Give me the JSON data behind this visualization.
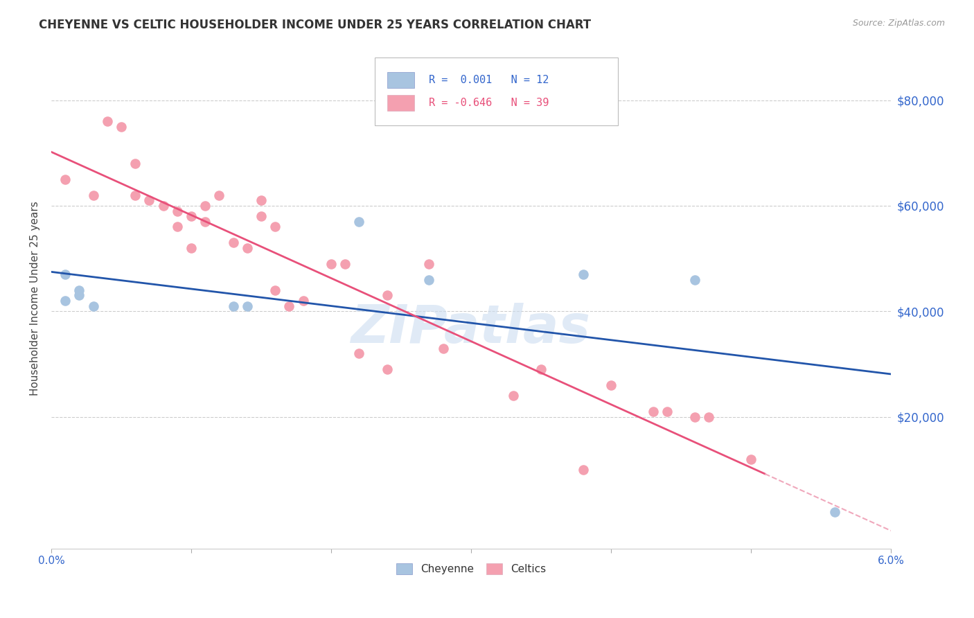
{
  "title": "CHEYENNE VS CELTIC HOUSEHOLDER INCOME UNDER 25 YEARS CORRELATION CHART",
  "source": "Source: ZipAtlas.com",
  "ylabel": "Householder Income Under 25 years",
  "watermark": "ZIPatlas",
  "cheyenne_color": "#a8c4e0",
  "celtics_color": "#f4a0b0",
  "cheyenne_line_color": "#2255aa",
  "celtics_line_color": "#e8507a",
  "celtics_line_dash_color": "#f0a8bc",
  "ytick_labels": [
    "$80,000",
    "$60,000",
    "$40,000",
    "$20,000"
  ],
  "ytick_values": [
    80000,
    60000,
    40000,
    20000
  ],
  "y_axis_color": "#3366cc",
  "background_color": "#ffffff",
  "grid_color": "#cccccc",
  "cheyenne_x": [
    0.001,
    0.001,
    0.002,
    0.002,
    0.003,
    0.013,
    0.014,
    0.022,
    0.027,
    0.038,
    0.046,
    0.056
  ],
  "cheyenne_y": [
    42000,
    47000,
    43000,
    44000,
    41000,
    41000,
    41000,
    57000,
    46000,
    47000,
    46000,
    2000
  ],
  "celtics_x": [
    0.001,
    0.003,
    0.004,
    0.005,
    0.006,
    0.006,
    0.007,
    0.008,
    0.009,
    0.009,
    0.01,
    0.01,
    0.011,
    0.011,
    0.012,
    0.013,
    0.014,
    0.015,
    0.015,
    0.016,
    0.016,
    0.017,
    0.018,
    0.02,
    0.021,
    0.022,
    0.024,
    0.024,
    0.027,
    0.028,
    0.033,
    0.035,
    0.038,
    0.04,
    0.043,
    0.044,
    0.046,
    0.047,
    0.05
  ],
  "celtics_y": [
    65000,
    62000,
    76000,
    75000,
    68000,
    62000,
    61000,
    60000,
    59000,
    56000,
    58000,
    52000,
    60000,
    57000,
    62000,
    53000,
    52000,
    61000,
    58000,
    44000,
    56000,
    41000,
    42000,
    49000,
    49000,
    32000,
    29000,
    43000,
    49000,
    33000,
    24000,
    29000,
    10000,
    26000,
    21000,
    21000,
    20000,
    20000,
    12000
  ],
  "cheyenne_line_y_intercept": 41500,
  "cheyenne_line_slope": 0,
  "celtics_line_y_intercept": 63000,
  "celtics_line_slope": -900000,
  "xlim": [
    0.0,
    0.06
  ],
  "ylim": [
    -5000,
    90000
  ],
  "xtick_positions": [
    0.0,
    0.01,
    0.02,
    0.03,
    0.04,
    0.05,
    0.06
  ],
  "figsize": [
    14.06,
    8.92
  ],
  "dpi": 100
}
